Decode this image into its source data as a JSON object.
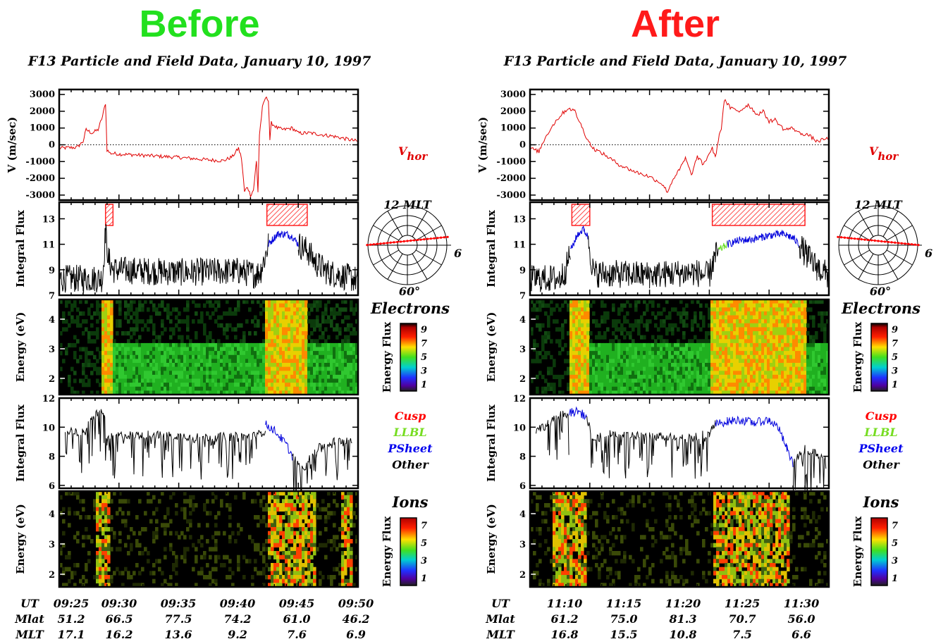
{
  "chart_data": [
    {
      "type": "figure",
      "heading": "Before",
      "heading_color": "#22e01e",
      "title": "F13 Particle and Field Data, January 10, 1997",
      "velocity": {
        "ylabel": "V (m/sec)",
        "yticks": [
          "3000",
          "2000",
          "1000",
          "0",
          "-1000",
          "-2000",
          "-3000"
        ],
        "ylim": [
          -3300,
          3300
        ],
        "label_main": "V",
        "label_sub": "hor",
        "series": [
          [
            0,
            -200
          ],
          [
            6,
            -150
          ],
          [
            8,
            200
          ],
          [
            9,
            900
          ],
          [
            11,
            700
          ],
          [
            13,
            900
          ],
          [
            14.5,
            1700
          ],
          [
            15.5,
            2500
          ],
          [
            16,
            -300
          ],
          [
            17,
            -500
          ],
          [
            20,
            -550
          ],
          [
            30,
            -650
          ],
          [
            40,
            -750
          ],
          [
            50,
            -900
          ],
          [
            55,
            -950
          ],
          [
            58,
            -700
          ],
          [
            60,
            -200
          ],
          [
            61,
            -800
          ],
          [
            62,
            -2800
          ],
          [
            63,
            -2500
          ],
          [
            64,
            -3000
          ],
          [
            65,
            -2700
          ],
          [
            66,
            -1000
          ],
          [
            66.5,
            -2800
          ],
          [
            67,
            600
          ],
          [
            68,
            2200
          ],
          [
            69,
            2800
          ],
          [
            70,
            2700
          ],
          [
            70.5,
            300
          ],
          [
            71,
            1300
          ],
          [
            73,
            1000
          ],
          [
            75,
            900
          ],
          [
            78,
            1000
          ],
          [
            80,
            700
          ],
          [
            84,
            700
          ],
          [
            88,
            600
          ],
          [
            92,
            500
          ],
          [
            100,
            200
          ]
        ]
      },
      "integral_electron": {
        "ylabel": "Integral Flux",
        "yticks": [
          "13",
          "11",
          "9",
          "7"
        ],
        "ylim": [
          7,
          14.3
        ],
        "cusp_regions": [
          [
            15.5,
            18
          ],
          [
            69.5,
            83
          ]
        ],
        "segments": [
          {
            "name": "Other",
            "color": "#000000",
            "points": [
              [
                0,
                8.3
              ],
              [
                14.5,
                8.3
              ],
              [
                15.5,
                12
              ],
              [
                16.5,
                9.8
              ],
              [
                18,
                9
              ],
              [
                40,
                8.8
              ],
              [
                60,
                8.9
              ],
              [
                66,
                8.6
              ],
              [
                67.5,
                9
              ],
              [
                69.5,
                10.5
              ],
              [
                70,
                11
              ]
            ]
          },
          {
            "name": "PSheet",
            "color": "#0000dd",
            "points": [
              [
                70,
                11
              ],
              [
                73,
                11.8
              ],
              [
                76,
                11.8
              ],
              [
                78,
                11.6
              ],
              [
                80,
                11
              ]
            ]
          },
          {
            "name": "Other",
            "color": "#000000",
            "points": [
              [
                80,
                11
              ],
              [
                83,
                10.5
              ],
              [
                86,
                9.5
              ],
              [
                90,
                8.8
              ],
              [
                100,
                8.2
              ]
            ]
          }
        ]
      },
      "orbit": {
        "top_label": "12 MLT",
        "right_label": "6",
        "bottom_label": "60°"
      },
      "electrons": {
        "name": "Electrons",
        "ylabel": "Energy (eV)",
        "yticks": [
          "4",
          "3",
          "2"
        ],
        "colorbar_label": "Energy Flux",
        "colorbar_ticks": [
          "9",
          "7",
          "5",
          "3",
          "1"
        ]
      },
      "integral_ion": {
        "ylabel": "Integral Flux",
        "yticks": [
          "12",
          "10",
          "8",
          "6"
        ],
        "ylim": [
          5.8,
          12
        ],
        "segments": [
          {
            "name": "Other",
            "color": "#000000",
            "points": [
              [
                2,
                9.8
              ],
              [
                8,
                9.6
              ],
              [
                11,
                10.5
              ],
              [
                13,
                11.1
              ],
              [
                15,
                11
              ],
              [
                16,
                9
              ],
              [
                18,
                9.4
              ],
              [
                30,
                9.5
              ],
              [
                50,
                9.3
              ],
              [
                66,
                9.4
              ],
              [
                69,
                9.8
              ]
            ]
          },
          {
            "name": "PSheet",
            "color": "#0000dd",
            "points": [
              [
                69,
                10.2
              ],
              [
                72,
                9.8
              ],
              [
                76,
                8.8
              ],
              [
                78,
                8
              ]
            ]
          },
          {
            "name": "Other",
            "color": "#000000",
            "points": [
              [
                78,
                8
              ],
              [
                82,
                7.2
              ],
              [
                86,
                8.5
              ],
              [
                92,
                9
              ],
              [
                98,
                9.2
              ]
            ]
          }
        ],
        "legend": [
          {
            "label": "Cusp",
            "color": "#ff0000"
          },
          {
            "label": "LLBL",
            "color": "#77dd22"
          },
          {
            "label": "PSheet",
            "color": "#0000ee"
          },
          {
            "label": "Other",
            "color": "#000000"
          }
        ]
      },
      "ions": {
        "name": "Ions",
        "ylabel": "Energy (eV)",
        "yticks": [
          "4",
          "3",
          "2"
        ],
        "colorbar_label": "Energy Flux",
        "colorbar_ticks": [
          "7",
          "5",
          "3",
          "1"
        ]
      },
      "footer": {
        "ut_label": "UT",
        "mlat_label": "Mlat",
        "mlt_label": "MLT",
        "ut": [
          "09:25",
          "09:30",
          "09:35",
          "09:40",
          "09:45",
          "09:50"
        ],
        "mlat": [
          "51.2",
          "66.5",
          "77.5",
          "74.2",
          "61.0",
          "46.2"
        ],
        "mlt": [
          "17.1",
          "16.2",
          "13.6",
          "9.2",
          "7.6",
          "6.9"
        ]
      }
    },
    {
      "type": "figure",
      "heading": "After",
      "heading_color": "#ff1a1a",
      "title": "F13 Particle and Field Data, January 10, 1997",
      "velocity": {
        "ylabel": "V (m/sec)",
        "yticks": [
          "3000",
          "2000",
          "1000",
          "0",
          "-1000",
          "-2000",
          "-3000"
        ],
        "ylim": [
          -3300,
          3300
        ],
        "label_main": "V",
        "label_sub": "hor",
        "series": [
          [
            0,
            -200
          ],
          [
            3,
            -400
          ],
          [
            5,
            400
          ],
          [
            7,
            1000
          ],
          [
            9,
            1500
          ],
          [
            11,
            1900
          ],
          [
            13,
            2200
          ],
          [
            15,
            2000
          ],
          [
            17,
            1200
          ],
          [
            19,
            400
          ],
          [
            21,
            -200
          ],
          [
            25,
            -600
          ],
          [
            30,
            -1200
          ],
          [
            35,
            -1600
          ],
          [
            40,
            -1900
          ],
          [
            44,
            -2300
          ],
          [
            46,
            -2800
          ],
          [
            48,
            -2000
          ],
          [
            50,
            -1500
          ],
          [
            52,
            -800
          ],
          [
            54,
            -1800
          ],
          [
            56,
            -700
          ],
          [
            58,
            -1200
          ],
          [
            60,
            -500
          ],
          [
            61,
            -200
          ],
          [
            62,
            -800
          ],
          [
            63,
            300
          ],
          [
            64,
            1000
          ],
          [
            65,
            2700
          ],
          [
            67,
            2200
          ],
          [
            70,
            2000
          ],
          [
            73,
            2400
          ],
          [
            76,
            1800
          ],
          [
            78,
            2000
          ],
          [
            80,
            1400
          ],
          [
            82,
            1500
          ],
          [
            85,
            900
          ],
          [
            88,
            1000
          ],
          [
            90,
            700
          ],
          [
            93,
            600
          ],
          [
            96,
            200
          ],
          [
            98,
            300
          ],
          [
            100,
            400
          ]
        ]
      },
      "integral_electron": {
        "ylabel": "Integral Flux",
        "yticks": [
          "13",
          "11",
          "9",
          "7"
        ],
        "ylim": [
          7,
          14.3
        ],
        "cusp_regions": [
          [
            14,
            20
          ],
          [
            61,
            92
          ]
        ],
        "segments": [
          {
            "name": "Other",
            "color": "#000000",
            "points": [
              [
                0,
                8.3
              ],
              [
                10,
                8.3
              ],
              [
                12,
                9
              ],
              [
                13.5,
                10.5
              ]
            ]
          },
          {
            "name": "PSheet",
            "color": "#0000dd",
            "points": [
              [
                13.5,
                10.5
              ],
              [
                16,
                11.8
              ],
              [
                18,
                12.2
              ],
              [
                19.5,
                11.5
              ]
            ]
          },
          {
            "name": "Other",
            "color": "#000000",
            "points": [
              [
                19.5,
                11.5
              ],
              [
                21,
                9
              ],
              [
                22,
                8.7
              ],
              [
                40,
                8.6
              ],
              [
                55,
                8.8
              ],
              [
                60,
                8.5
              ],
              [
                61,
                9.5
              ],
              [
                63,
                10.5
              ]
            ]
          },
          {
            "name": "LLBL",
            "color": "#66dd22",
            "points": [
              [
                63,
                10.5
              ],
              [
                66,
                11
              ]
            ]
          },
          {
            "name": "PSheet",
            "color": "#0000dd",
            "points": [
              [
                66,
                11
              ],
              [
                70,
                11.3
              ],
              [
                75,
                11.4
              ],
              [
                80,
                11.7
              ],
              [
                85,
                11.8
              ],
              [
                88,
                11.5
              ],
              [
                90,
                11
              ]
            ]
          },
          {
            "name": "Other",
            "color": "#000000",
            "points": [
              [
                90,
                11
              ],
              [
                93,
                10
              ],
              [
                96,
                9.2
              ],
              [
                100,
                8.5
              ]
            ]
          }
        ]
      },
      "orbit": {
        "top_label": "12 MLT",
        "right_label": "6",
        "bottom_label": "60°"
      },
      "electrons": {
        "name": "Electrons",
        "ylabel": "Energy (eV)",
        "yticks": [
          "4",
          "3",
          "2"
        ],
        "colorbar_label": "Energy Flux",
        "colorbar_ticks": [
          "9",
          "7",
          "5",
          "3",
          "1"
        ]
      },
      "integral_ion": {
        "ylabel": "Integral Flux",
        "yticks": [
          "12",
          "10",
          "8",
          "6"
        ],
        "ylim": [
          5.8,
          12
        ],
        "segments": [
          {
            "name": "Other",
            "color": "#000000",
            "points": [
              [
                2,
                9.8
              ],
              [
                6,
                10.2
              ],
              [
                10,
                10.8
              ],
              [
                13,
                11
              ]
            ]
          },
          {
            "name": "PSheet",
            "color": "#0000dd",
            "points": [
              [
                13,
                11
              ],
              [
                16,
                11.1
              ],
              [
                19,
                10.7
              ]
            ]
          },
          {
            "name": "Other",
            "color": "#000000",
            "points": [
              [
                19,
                10.7
              ],
              [
                21,
                9
              ],
              [
                25,
                9.5
              ],
              [
                40,
                9.4
              ],
              [
                55,
                9.3
              ],
              [
                60,
                9.6
              ],
              [
                62,
                10.2
              ]
            ]
          },
          {
            "name": "PSheet",
            "color": "#0000dd",
            "points": [
              [
                62,
                10.2
              ],
              [
                66,
                10.4
              ],
              [
                70,
                10.5
              ],
              [
                75,
                10.3
              ],
              [
                80,
                10.5
              ],
              [
                83,
                10
              ],
              [
                86,
                8.5
              ],
              [
                88,
                7.5
              ]
            ]
          },
          {
            "name": "Other",
            "color": "#000000",
            "points": [
              [
                88,
                7.5
              ],
              [
                92,
                8.5
              ],
              [
                96,
                8.2
              ],
              [
                99,
                7.8
              ]
            ]
          }
        ],
        "legend": [
          {
            "label": "Cusp",
            "color": "#ff0000"
          },
          {
            "label": "LLBL",
            "color": "#77dd22"
          },
          {
            "label": "PSheet",
            "color": "#0000ee"
          },
          {
            "label": "Other",
            "color": "#000000"
          }
        ]
      },
      "ions": {
        "name": "Ions",
        "ylabel": "Energy (eV)",
        "yticks": [
          "4",
          "3",
          "2"
        ],
        "colorbar_label": "Energy Flux",
        "colorbar_ticks": [
          "7",
          "5",
          "3",
          "1"
        ]
      },
      "footer": {
        "ut_label": "UT",
        "mlat_label": "Mlat",
        "mlt_label": "MLT",
        "ut": [
          "11:10",
          "11:15",
          "11:20",
          "11:25",
          "11:30"
        ],
        "mlat": [
          "61.2",
          "75.0",
          "81.3",
          "70.7",
          "56.0"
        ],
        "mlt": [
          "16.8",
          "15.5",
          "10.8",
          "7.5",
          "6.6"
        ]
      }
    }
  ]
}
